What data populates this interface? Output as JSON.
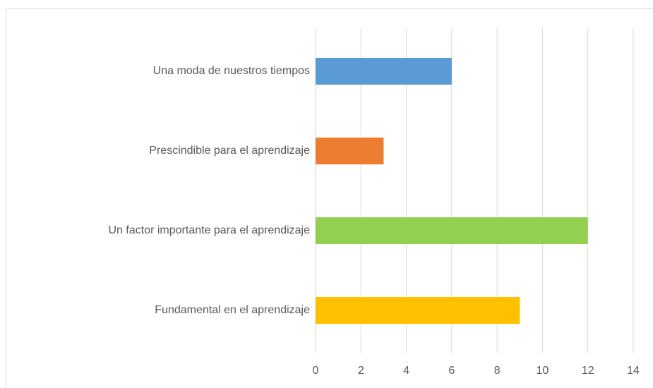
{
  "chart_data": {
    "type": "bar",
    "orientation": "horizontal",
    "categories": [
      "Una moda de nuestros tiempos",
      "Prescindible para el aprendizaje",
      "Un factor importante para el aprendizaje",
      "Fundamental en el aprendizaje"
    ],
    "values": [
      6,
      3,
      12,
      9
    ],
    "colors": [
      "#5b9bd5",
      "#ed7d31",
      "#92d050",
      "#ffc000"
    ],
    "xlim": [
      0,
      14
    ],
    "xticks": [
      0,
      2,
      4,
      6,
      8,
      10,
      12,
      14
    ],
    "grid": true
  }
}
